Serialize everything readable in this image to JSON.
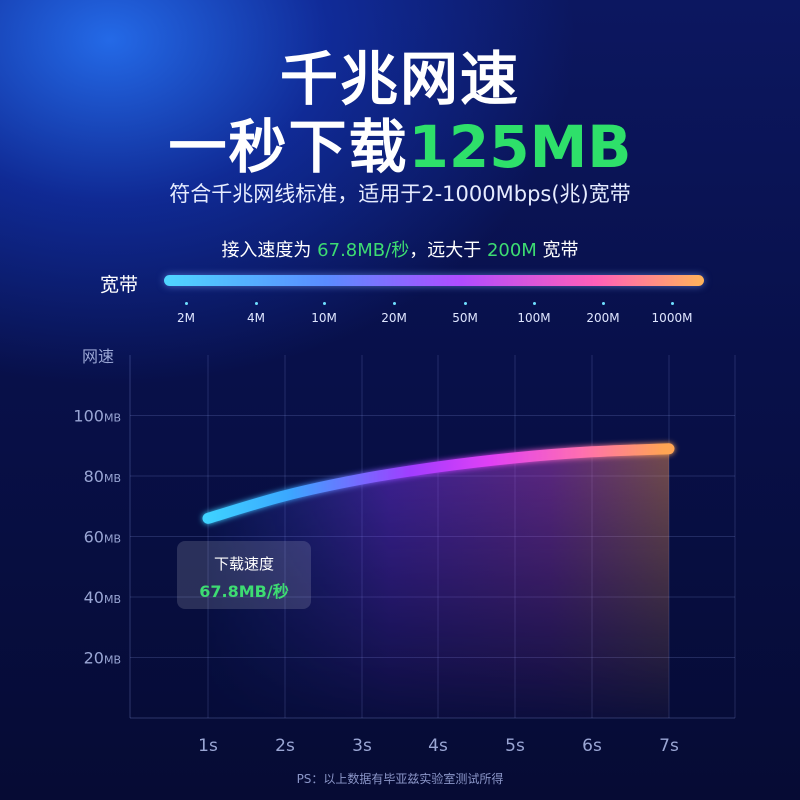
{
  "header": {
    "title_line1": "千兆网速",
    "title_line2_prefix": "一秒下载",
    "title_line2_highlight": "125MB",
    "subtitle": "符合千兆网线标准，适用于2-1000Mbps(兆)宽带",
    "speed_prefix": "接入速度为 ",
    "speed_value": "67.8MB/秒",
    "speed_middle": "，远大于 ",
    "speed_compare": "200M",
    "speed_suffix": " 宽带"
  },
  "bandwidth": {
    "label": "宽带",
    "ticks": [
      "2M",
      "4M",
      "10M",
      "20M",
      "50M",
      "100M",
      "200M",
      "1000M"
    ]
  },
  "tooltip": {
    "title": "下载速度",
    "value": "67.8MB/秒"
  },
  "footnote": "PS：以上数据有毕亚兹实验室测试所得",
  "colors": {
    "highlight_green": "#3ddc72",
    "curve_start": "#3fd3ff",
    "curve_mid": "#b23cff",
    "curve_end": "#ffa552"
  },
  "chart_data": {
    "type": "line",
    "ylabel": "网速",
    "y_unit": "MB",
    "ylim": [
      0,
      120
    ],
    "y_ticks": [
      20,
      40,
      60,
      80,
      100
    ],
    "x_ticks": [
      "1s",
      "2s",
      "3s",
      "4s",
      "5s",
      "6s",
      "7s"
    ],
    "x": [
      1,
      2,
      3,
      4,
      5,
      6,
      7
    ],
    "grid": true,
    "series": [
      {
        "values": [
          66,
          73.5,
          79,
          83,
          86,
          88,
          89
        ]
      }
    ]
  }
}
